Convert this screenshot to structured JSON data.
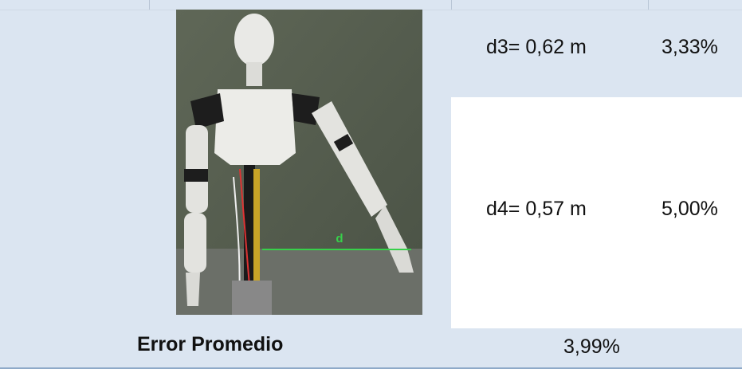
{
  "table": {
    "rows": [
      [
        "d3= 0,62 m",
        "3,33%"
      ],
      [
        "d4= 0,57 m",
        "5,00%"
      ]
    ],
    "footer": {
      "label": "Error Promedio",
      "value": "3,99%"
    }
  },
  "photo": {
    "label": "d"
  }
}
